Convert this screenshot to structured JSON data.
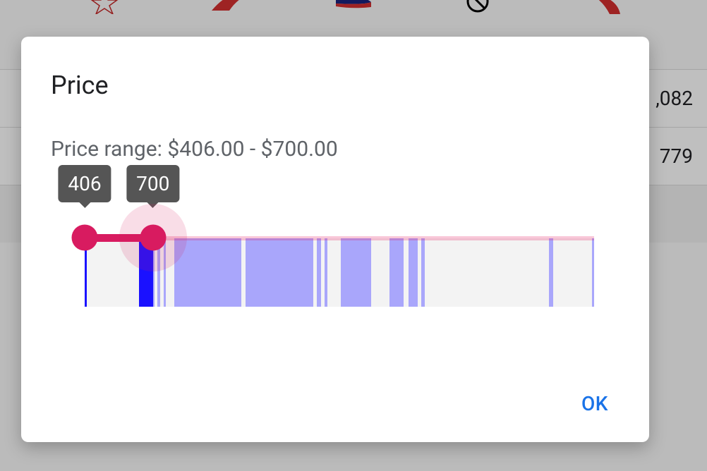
{
  "modal": {
    "title": "Price",
    "range_label_prefix": "Price range: ",
    "min_display": "$406.00",
    "max_display": "$700.00",
    "separator": " - ",
    "ok_label": "OK"
  },
  "slider": {
    "domain_min": 406,
    "domain_max": 2600,
    "value_min": 406,
    "value_max": 700,
    "tooltip_min": "406",
    "tooltip_max": "700",
    "track_color": "#d81b60",
    "track_inactive_color": "rgba(233,30,99,0.22)",
    "handle_color": "#d81b60",
    "tooltip_bg": "#555555",
    "tooltip_fg": "#ffffff",
    "halo_color": "rgba(216,27,96,0.15)",
    "active_handle": "max"
  },
  "histogram": {
    "bg_color": "#f3f3f3",
    "bar_in_range_color": "#1a11ff",
    "bar_out_range_color": "#a9a6fb",
    "bars": [
      {
        "start": 406,
        "end": 414
      },
      {
        "start": 640,
        "end": 706
      },
      {
        "start": 720,
        "end": 732
      },
      {
        "start": 745,
        "end": 755
      },
      {
        "start": 792,
        "end": 1080
      },
      {
        "start": 1100,
        "end": 1390
      },
      {
        "start": 1405,
        "end": 1425
      },
      {
        "start": 1438,
        "end": 1450
      },
      {
        "start": 1510,
        "end": 1640
      },
      {
        "start": 1720,
        "end": 1780
      },
      {
        "start": 1800,
        "end": 1840
      },
      {
        "start": 1855,
        "end": 1870
      },
      {
        "start": 2406,
        "end": 2424
      },
      {
        "start": 2590,
        "end": 2600
      }
    ]
  },
  "background": {
    "prices": [
      ",082",
      "779"
    ],
    "overlay_color": "rgba(0,0,0,0.25)",
    "airline_logos": [
      {
        "name": "royal-air-maroc",
        "color": "#c62828"
      },
      {
        "name": "avianca",
        "color": "#d32f2f"
      },
      {
        "name": "british-airways",
        "color": "#1a237e"
      },
      {
        "name": "prohibited",
        "color": "#000000"
      },
      {
        "name": "virgin-atlantic",
        "color": "#d32f2f"
      }
    ]
  }
}
